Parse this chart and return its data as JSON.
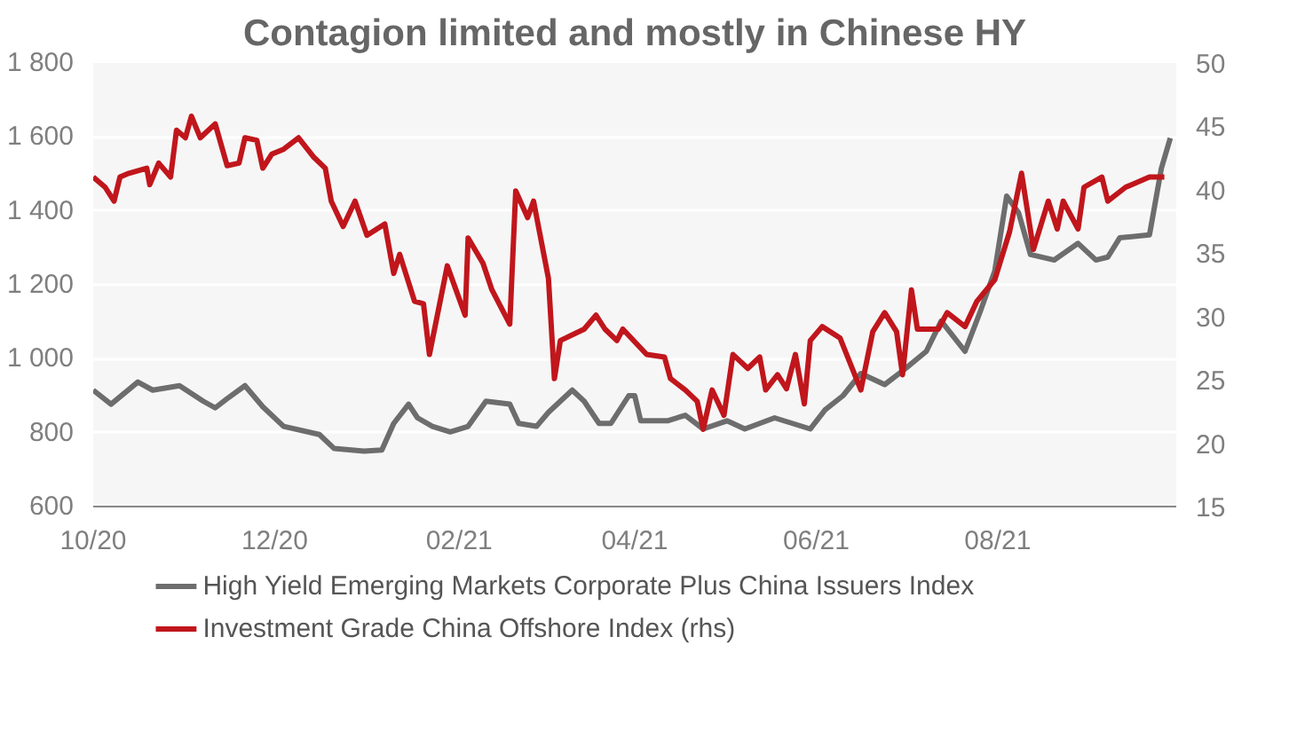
{
  "chart_data": {
    "type": "line",
    "title": "Contagion limited and mostly in Chinese HY",
    "xlim": [
      "2020-10-01",
      "2021-09-30"
    ],
    "xticks": [
      {
        "value": "2020-10-01",
        "label": "10/20"
      },
      {
        "value": "2020-12-01",
        "label": "12/20"
      },
      {
        "value": "2021-02-01",
        "label": "02/21"
      },
      {
        "value": "2021-04-01",
        "label": "04/21"
      },
      {
        "value": "2021-06-01",
        "label": "06/21"
      },
      {
        "value": "2021-08-01",
        "label": "08/21"
      }
    ],
    "ylim": [
      600,
      1800
    ],
    "yticks": [
      {
        "value": 600,
        "label": "600"
      },
      {
        "value": 800,
        "label": "800"
      },
      {
        "value": 1000,
        "label": "1 000"
      },
      {
        "value": 1200,
        "label": "1 200"
      },
      {
        "value": 1400,
        "label": "1 400"
      },
      {
        "value": 1600,
        "label": "1 600"
      },
      {
        "value": 1800,
        "label": "1 800"
      }
    ],
    "y2lim": [
      15,
      50
    ],
    "y2ticks": [
      15,
      20,
      25,
      30,
      35,
      40,
      45,
      50
    ],
    "grid": "y",
    "legend": "bottom",
    "marker": "none",
    "line_style": "solid",
    "series": [
      {
        "name": "High Yield Emerging Markets Corporate Plus China Issuers Index",
        "color": "#6d6d6d",
        "x": [
          "2020-10-01",
          "2020-10-07",
          "2020-10-16",
          "2020-10-21",
          "2020-10-30",
          "2020-11-07",
          "2020-11-11",
          "2020-11-15",
          "2020-11-21",
          "2020-11-27",
          "2020-12-04",
          "2020-12-16",
          "2020-12-21",
          "2020-12-31",
          "2021-01-06",
          "2021-01-10",
          "2021-01-15",
          "2021-01-18",
          "2021-01-23",
          "2021-01-29",
          "2021-02-04",
          "2021-02-10",
          "2021-02-18",
          "2021-02-21",
          "2021-02-27",
          "2021-03-03",
          "2021-03-11",
          "2021-03-15",
          "2021-03-20",
          "2021-03-24",
          "2021-03-30",
          "2021-04-01",
          "2021-04-03",
          "2021-04-12",
          "2021-04-18",
          "2021-04-24",
          "2021-05-02",
          "2021-05-08",
          "2021-05-18",
          "2021-05-30",
          "2021-06-04",
          "2021-06-10",
          "2021-06-16",
          "2021-06-24",
          "2021-06-30",
          "2021-07-08",
          "2021-07-13",
          "2021-07-21",
          "2021-07-26",
          "2021-07-31",
          "2021-08-04",
          "2021-08-08",
          "2021-08-12",
          "2021-08-20",
          "2021-08-28",
          "2021-09-03",
          "2021-09-07",
          "2021-09-11",
          "2021-09-21",
          "2021-09-25",
          "2021-09-28"
        ],
        "values": [
          915,
          877,
          937,
          915,
          927,
          885,
          867,
          892,
          927,
          870,
          817,
          795,
          757,
          750,
          753,
          825,
          877,
          840,
          817,
          802,
          817,
          885,
          877,
          825,
          817,
          855,
          915,
          885,
          825,
          825,
          900,
          900,
          832,
          832,
          847,
          810,
          832,
          810,
          840,
          810,
          862,
          900,
          960,
          930,
          967,
          1020,
          1102,
          1020,
          1125,
          1237,
          1440,
          1395,
          1282,
          1267,
          1312,
          1267,
          1275,
          1327,
          1335,
          1515,
          1597
        ]
      },
      {
        "name": "Investment Grade China Offshore Index (rhs)",
        "color": "#c0161c",
        "axis": "y2",
        "x": [
          "2020-10-01",
          "2020-10-05",
          "2020-10-08",
          "2020-10-10",
          "2020-10-13",
          "2020-10-19",
          "2020-10-20",
          "2020-10-23",
          "2020-10-27",
          "2020-10-29",
          "2020-11-01",
          "2020-11-03",
          "2020-11-06",
          "2020-11-11",
          "2020-11-15",
          "2020-11-19",
          "2020-11-21",
          "2020-11-25",
          "2020-11-27",
          "2020-11-30",
          "2020-12-04",
          "2020-12-09",
          "2020-12-14",
          "2020-12-18",
          "2020-12-20",
          "2020-12-24",
          "2020-12-28",
          "2021-01-01",
          "2021-01-07",
          "2021-01-10",
          "2021-01-12",
          "2021-01-17",
          "2021-01-20",
          "2021-01-22",
          "2021-01-28",
          "2021-02-03",
          "2021-02-04",
          "2021-02-09",
          "2021-02-12",
          "2021-02-18",
          "2021-02-20",
          "2021-02-24",
          "2021-02-26",
          "2021-03-03",
          "2021-03-05",
          "2021-03-07",
          "2021-03-15",
          "2021-03-19",
          "2021-03-22",
          "2021-03-26",
          "2021-03-28",
          "2021-04-05",
          "2021-04-11",
          "2021-04-13",
          "2021-04-18",
          "2021-04-22",
          "2021-04-24",
          "2021-04-27",
          "2021-05-01",
          "2021-05-04",
          "2021-05-09",
          "2021-05-13",
          "2021-05-15",
          "2021-05-19",
          "2021-05-22",
          "2021-05-25",
          "2021-05-28",
          "2021-05-30",
          "2021-06-03",
          "2021-06-09",
          "2021-06-16",
          "2021-06-20",
          "2021-06-24",
          "2021-06-28",
          "2021-06-30",
          "2021-07-03",
          "2021-07-05",
          "2021-07-12",
          "2021-07-15",
          "2021-07-21",
          "2021-07-25",
          "2021-07-31",
          "2021-08-05",
          "2021-08-09",
          "2021-08-13",
          "2021-08-18",
          "2021-08-21",
          "2021-08-23",
          "2021-08-28",
          "2021-08-30",
          "2021-09-05",
          "2021-09-07",
          "2021-09-13",
          "2021-09-21",
          "2021-09-26"
        ],
        "values": [
          41.0,
          40.2,
          39.1,
          41.0,
          41.3,
          41.7,
          40.4,
          42.1,
          41.0,
          44.7,
          44.1,
          45.8,
          44.1,
          45.2,
          41.9,
          42.1,
          44.1,
          43.9,
          41.7,
          42.8,
          43.2,
          44.1,
          42.6,
          41.7,
          39.1,
          37.1,
          39.1,
          36.4,
          37.3,
          33.4,
          34.9,
          31.2,
          31.0,
          27.0,
          34.0,
          30.1,
          36.2,
          34.2,
          32.1,
          29.4,
          39.9,
          37.8,
          39.1,
          33.0,
          25.1,
          28.1,
          29.0,
          30.1,
          29.0,
          28.1,
          29.0,
          27.0,
          26.8,
          25.1,
          24.2,
          23.3,
          21.1,
          24.2,
          22.2,
          27.0,
          25.9,
          26.8,
          24.2,
          25.4,
          24.3,
          27.0,
          23.1,
          28.1,
          29.2,
          28.3,
          24.2,
          28.8,
          30.3,
          28.8,
          25.4,
          32.1,
          29.0,
          29.0,
          30.3,
          29.2,
          31.2,
          32.9,
          36.7,
          41.3,
          35.3,
          39.1,
          36.9,
          39.1,
          36.9,
          40.2,
          41.0,
          39.1,
          40.2,
          41.0,
          41.0
        ]
      }
    ]
  }
}
